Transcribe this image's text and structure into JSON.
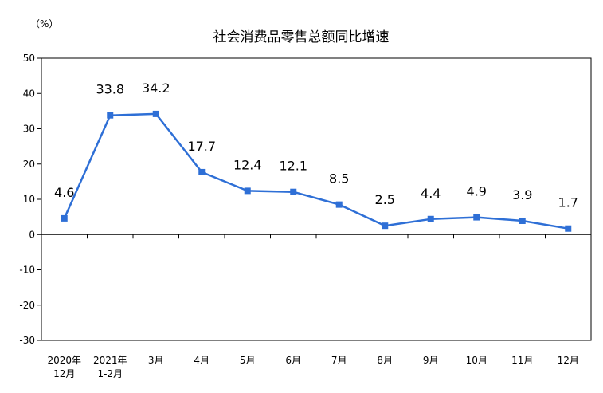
{
  "chart_data": {
    "type": "line",
    "title": "社会消费品零售总额同比增速",
    "unit_label": "（%）",
    "categories": [
      [
        "2020年",
        "12月"
      ],
      [
        "2021年",
        "1-2月"
      ],
      [
        "3月"
      ],
      [
        "4月"
      ],
      [
        "5月"
      ],
      [
        "6月"
      ],
      [
        "7月"
      ],
      [
        "8月"
      ],
      [
        "9月"
      ],
      [
        "10月"
      ],
      [
        "11月"
      ],
      [
        "12月"
      ]
    ],
    "series": [
      {
        "values": [
          4.6,
          33.8,
          34.2,
          17.7,
          12.4,
          12.1,
          8.5,
          2.5,
          4.4,
          4.9,
          3.9,
          1.7
        ]
      }
    ],
    "data_labels": [
      "4.6",
      "33.8",
      "34.2",
      "17.7",
      "12.4",
      "12.1",
      "8.5",
      "2.5",
      "4.4",
      "4.9",
      "3.9",
      "1.7"
    ],
    "ylim": [
      -30,
      50
    ],
    "yticks": [
      "50",
      "40",
      "30",
      "20",
      "10",
      "0",
      "-10",
      "-20",
      "-30"
    ],
    "grid": false,
    "legend": "none",
    "colors": {
      "line": "#2e6fd6",
      "marker": "#2e6fd6",
      "axis": "#000000"
    }
  }
}
